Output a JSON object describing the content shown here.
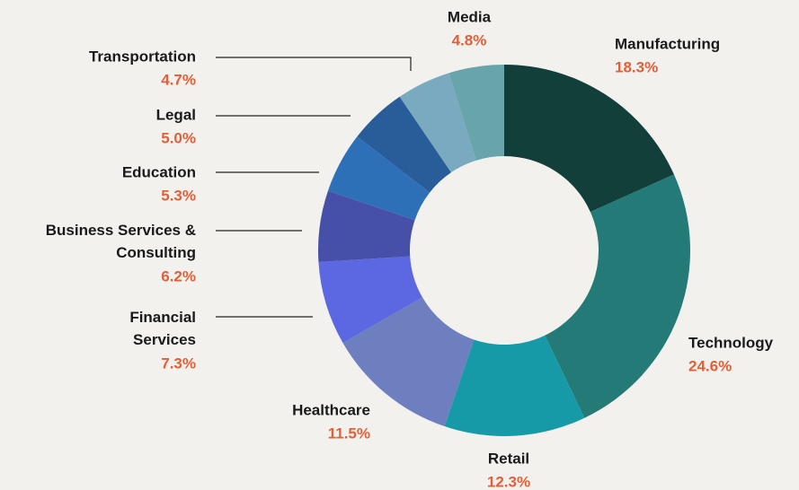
{
  "chart_data": {
    "type": "donut",
    "categories": [
      "Manufacturing",
      "Technology",
      "Retail",
      "Healthcare",
      "Financial Services",
      "Business Services & Consulting",
      "Education",
      "Legal",
      "Transportation",
      "Media"
    ],
    "values": [
      18.3,
      24.6,
      12.3,
      11.5,
      7.3,
      6.2,
      5.3,
      5.0,
      4.7,
      4.8
    ],
    "value_labels": [
      "18.3%",
      "24.6%",
      "12.3%",
      "11.5%",
      "7.3%",
      "6.2%",
      "5.3%",
      "5.0%",
      "4.7%",
      "4.8%"
    ],
    "colors": [
      "#123f3a",
      "#237a76",
      "#179aa8",
      "#6e7fc0",
      "#5c68e2",
      "#4650a8",
      "#2d70b8",
      "#285d99",
      "#7aaabf",
      "#67a5ab"
    ]
  }
}
